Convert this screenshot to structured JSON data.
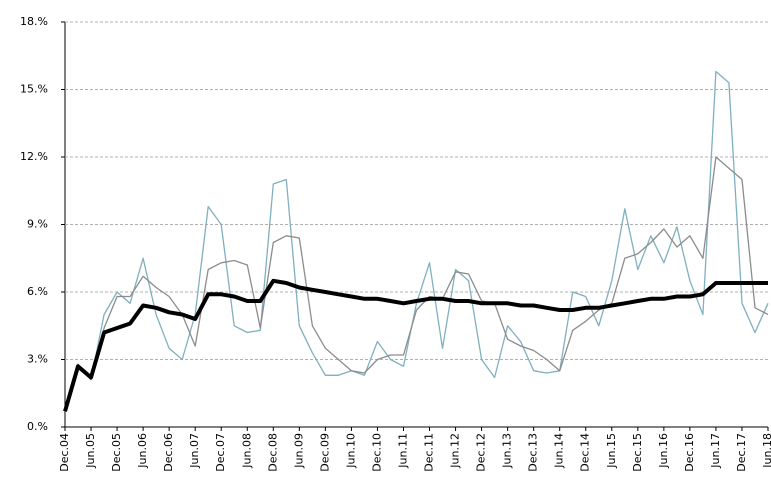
{
  "chart_data": {
    "type": "line",
    "categories": [
      "Dec.04",
      null,
      "Jun.05",
      null,
      "Dec.05",
      null,
      "Jun.06",
      null,
      "Dec.06",
      null,
      "Jun.07",
      null,
      "Dec.07",
      null,
      "Jun.08",
      null,
      "Dec.08",
      null,
      "Jun.09",
      null,
      "Dec.09",
      null,
      "Jun.10",
      null,
      "Dec.10",
      null,
      "Jun.11",
      null,
      "Dec.11",
      null,
      "Jun.12",
      null,
      "Dec.12",
      null,
      "Jun.13",
      null,
      "Dec.13",
      null,
      "Jun.14",
      null,
      "Dec.14",
      null,
      "Jun.15",
      null,
      "Dec.15",
      null,
      "Jun.16",
      null,
      "Dec.16",
      null,
      "Jun.17",
      null,
      "Dec.17",
      null,
      "Jun.18"
    ],
    "series": [
      {
        "color": "#7fb0bf",
        "values": [
          0.7,
          2.8,
          2.1,
          5.0,
          6.0,
          5.5,
          7.5,
          5.0,
          3.5,
          3.0,
          5.0,
          9.8,
          9.0,
          4.5,
          4.2,
          4.3,
          10.8,
          11.0,
          4.5,
          3.3,
          2.3,
          2.3,
          2.5,
          2.3,
          3.8,
          3.0,
          2.7,
          5.5,
          7.3,
          3.5,
          7.0,
          6.5,
          3.0,
          2.2,
          4.5,
          3.8,
          2.5,
          2.4,
          2.5,
          6.0,
          5.8,
          4.5,
          6.5,
          9.7,
          7.0,
          8.5,
          7.3,
          8.9,
          6.5,
          5.0,
          15.8,
          15.3,
          5.5,
          4.2,
          5.5
        ]
      },
      {
        "color": "#8c8c8c",
        "values": [
          0.7,
          2.7,
          2.2,
          4.4,
          5.8,
          5.8,
          6.7,
          6.2,
          5.8,
          5.0,
          3.6,
          7.0,
          7.3,
          7.4,
          7.2,
          4.4,
          8.2,
          8.5,
          8.4,
          4.5,
          3.5,
          3.0,
          2.5,
          2.4,
          3.0,
          3.2,
          3.2,
          5.2,
          5.8,
          5.7,
          6.9,
          6.8,
          5.6,
          5.5,
          3.9,
          3.6,
          3.4,
          3.0,
          2.5,
          4.3,
          4.7,
          5.2,
          5.5,
          7.5,
          7.7,
          8.2,
          8.8,
          8.0,
          8.5,
          7.5,
          12.0,
          11.5,
          11.0,
          5.3,
          5.0
        ]
      },
      {
        "color": "#000000",
        "values": [
          0.7,
          2.7,
          2.2,
          4.2,
          4.4,
          4.6,
          5.4,
          5.3,
          5.1,
          5.0,
          4.8,
          5.9,
          5.9,
          5.8,
          5.6,
          5.6,
          6.5,
          6.4,
          6.2,
          6.1,
          6.0,
          5.9,
          5.8,
          5.7,
          5.7,
          5.6,
          5.5,
          5.6,
          5.7,
          5.7,
          5.6,
          5.6,
          5.5,
          5.5,
          5.5,
          5.4,
          5.4,
          5.3,
          5.2,
          5.2,
          5.3,
          5.3,
          5.4,
          5.5,
          5.6,
          5.7,
          5.7,
          5.8,
          5.8,
          5.9,
          6.4,
          6.4,
          6.4,
          6.4,
          6.4
        ]
      }
    ],
    "ylim": [
      0,
      18
    ],
    "yticks": [
      {
        "value": 0,
        "label": "0.%"
      },
      {
        "value": 3,
        "label": "3.%"
      },
      {
        "value": 6,
        "label": "6.%"
      },
      {
        "value": 9,
        "label": "9.%"
      },
      {
        "value": 12,
        "label": "12.%"
      },
      {
        "value": 15,
        "label": "15.%"
      },
      {
        "value": 18,
        "label": "18.%"
      }
    ],
    "grid": true
  }
}
